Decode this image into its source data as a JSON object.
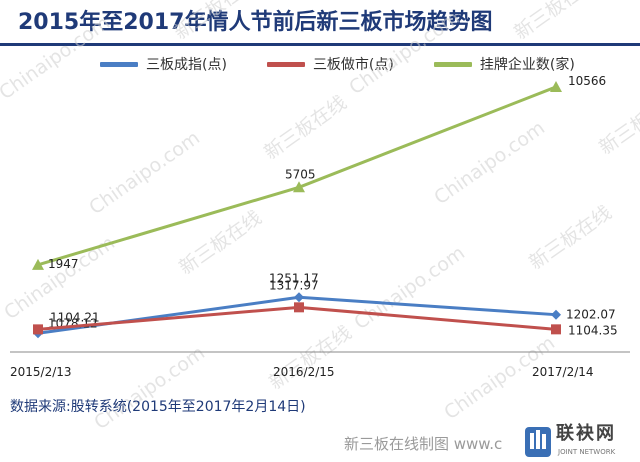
{
  "title": "2015年至2017年情人节前后新三板市场趋势图",
  "source": "数据来源:股转系统(2015年至2017年2月14日)",
  "watermark": {
    "latin": "Chinaipo.com",
    "chinese": "新三板在线"
  },
  "footer": {
    "credit": "新三板在线制图 www.c",
    "logo_cn": "联袂网",
    "logo_en": "JOINT NETWORK"
  },
  "colors": {
    "title": "#1f3a78",
    "series_blue": "#4a7ec4",
    "series_red": "#c0504d",
    "series_green": "#9bbb59",
    "axis": "#888888"
  },
  "chart_data": {
    "type": "line",
    "categories": [
      "2015/2/13",
      "2016/2/15",
      "2017/2/14"
    ],
    "series": [
      {
        "name": "三板成指(点)",
        "color": "#4a7ec4",
        "marker": "diamond",
        "values": [
          1078.12,
          1317.97,
          1202.07
        ],
        "labels": [
          "1078.12",
          "1317.97",
          "1202.07"
        ]
      },
      {
        "name": "三板做市(点)",
        "color": "#c0504d",
        "marker": "square",
        "values": [
          1104.21,
          1251.17,
          1104.35
        ],
        "labels": [
          "1104.21",
          "1251.17",
          "1104.35"
        ]
      },
      {
        "name": "挂牌企业数(家)",
        "color": "#9bbb59",
        "marker": "triangle",
        "values": [
          1947,
          5705,
          10566
        ],
        "labels": [
          "1947",
          "5705",
          "10566"
        ]
      }
    ],
    "legend_position": "top",
    "grid": false,
    "y_axis_visible": false
  }
}
